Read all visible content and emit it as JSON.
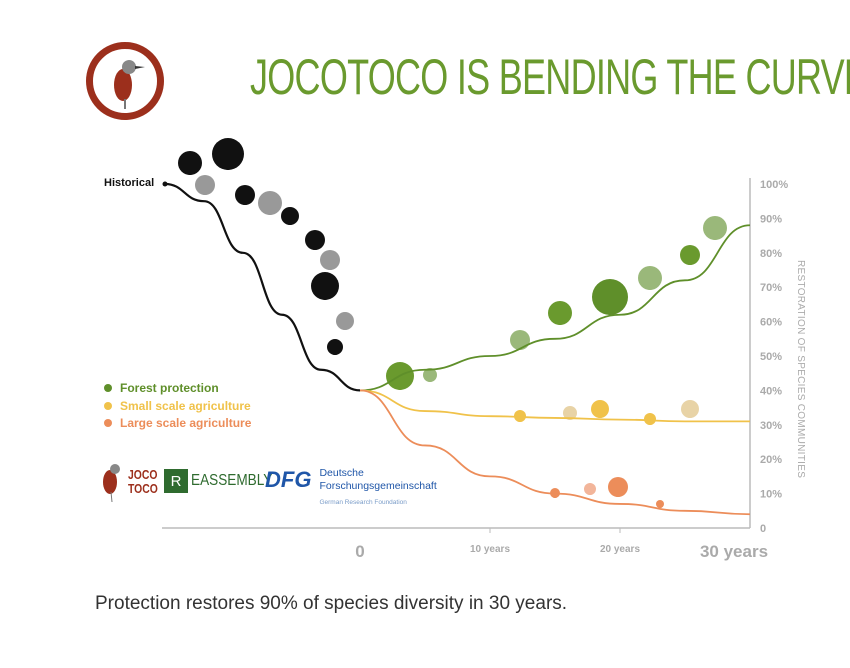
{
  "header": {
    "title": "JOCOTOCO IS BENDING THE CURVE"
  },
  "caption": "Protection restores 90% of species diversity in 30 years.",
  "legend": [
    {
      "label": "Forest protection",
      "color": "#5f8f2a"
    },
    {
      "label": "Small scale agriculture",
      "color": "#f0c24a"
    },
    {
      "label": "Large scale agriculture",
      "color": "#ec8d5a"
    }
  ],
  "partners": {
    "jocotoco": {
      "line1": "JOCO",
      "line2": "TOCO"
    },
    "reassembly": {
      "letter": "R",
      "rest": "EASSEMBLY"
    },
    "dfg": {
      "mark": "DFG",
      "line1": "Deutsche",
      "line2": "Forschungsgemeinschaft",
      "line3": "German Research Foundation"
    }
  },
  "chart_data": {
    "type": "line",
    "title": "JOCOTOCO IS BENDING THE CURVE",
    "ylabel": "RESTORATION OF SPECIES COMMUNITIES",
    "xlabel": "",
    "ylim": [
      0,
      100
    ],
    "xlim": [
      -15,
      30
    ],
    "y_ticks": [
      "0",
      "10%",
      "20%",
      "30%",
      "40%",
      "50%",
      "60%",
      "70%",
      "80%",
      "90%",
      "100%"
    ],
    "x_ticks": [
      {
        "value": 0,
        "label": "0"
      },
      {
        "value": 10,
        "label": "10 years"
      },
      {
        "value": 20,
        "label": "20 years"
      },
      {
        "value": 30,
        "label": "30 years"
      }
    ],
    "annotation": "Historical",
    "grid": false,
    "legend_position": "left",
    "series": [
      {
        "name": "Historical",
        "color": "#111111",
        "x": [
          -15,
          -12,
          -9,
          -6,
          -3,
          0
        ],
        "values": [
          100,
          95,
          80,
          62,
          46,
          40
        ]
      },
      {
        "name": "Forest protection",
        "color": "#5f8f2a",
        "x": [
          0,
          5,
          10,
          15,
          20,
          25,
          30
        ],
        "values": [
          40,
          46,
          50,
          55,
          62,
          72,
          88
        ]
      },
      {
        "name": "Small scale agriculture",
        "color": "#f0c24a",
        "x": [
          0,
          5,
          10,
          15,
          20,
          25,
          30
        ],
        "values": [
          40,
          34,
          32.5,
          32,
          31.5,
          31,
          31
        ]
      },
      {
        "name": "Large scale agriculture",
        "color": "#ec8d5a",
        "x": [
          0,
          5,
          10,
          15,
          20,
          25,
          30
        ],
        "values": [
          40,
          24,
          15,
          10,
          7,
          5,
          4
        ]
      }
    ]
  }
}
